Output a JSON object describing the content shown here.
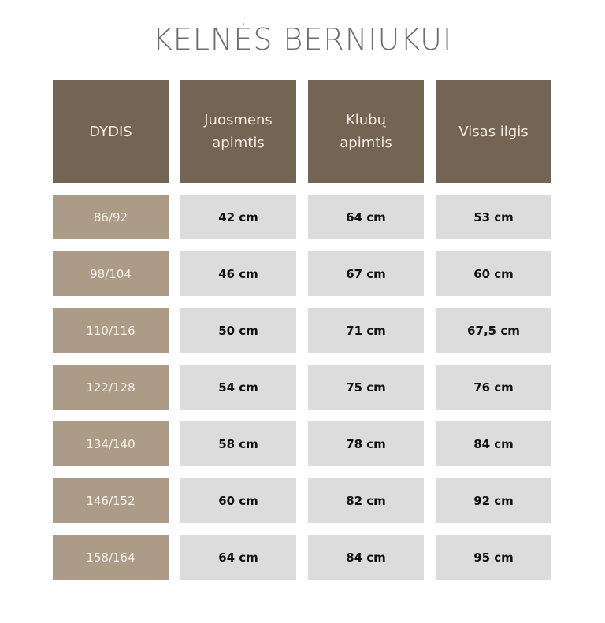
{
  "title": "KELNĖS BERNIUKUI",
  "colors": {
    "header": "#736453",
    "size_cell": "#ab9b87",
    "value_cell": "#dcdcdc"
  },
  "headers": [
    "DYDIS",
    "Juosmens apimtis",
    "Klubų apimtis",
    "Visas ilgis"
  ],
  "rows": [
    [
      "86/92",
      "42 cm",
      "64 cm",
      "53 cm"
    ],
    [
      "98/104",
      "46 cm",
      "67 cm",
      "60 cm"
    ],
    [
      "110/116",
      "50 cm",
      "71 cm",
      "67,5 cm"
    ],
    [
      "122/128",
      "54 cm",
      "75 cm",
      "76 cm"
    ],
    [
      "134/140",
      "58 cm",
      "78 cm",
      "84 cm"
    ],
    [
      "146/152",
      "60 cm",
      "82 cm",
      "92 cm"
    ],
    [
      "158/164",
      "64 cm",
      "84 cm",
      "95 cm"
    ]
  ]
}
